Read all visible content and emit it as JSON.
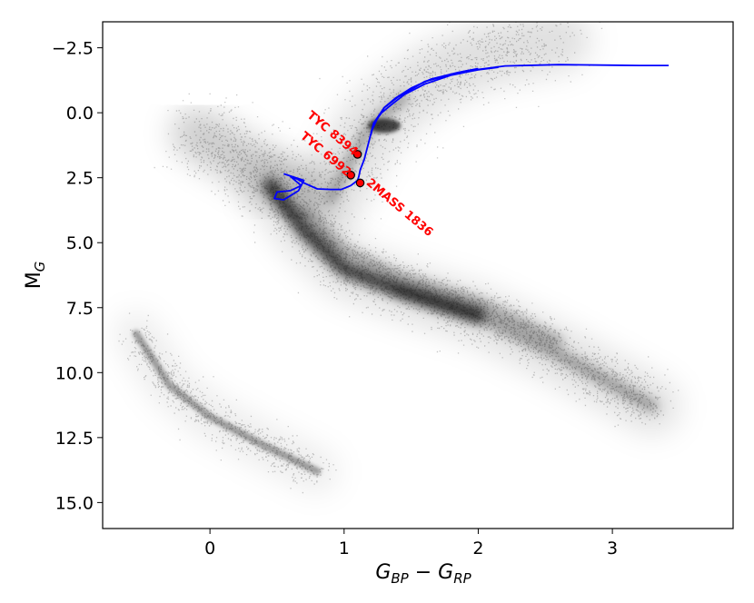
{
  "chart_data": {
    "type": "scatter",
    "title": "",
    "xlabel": {
      "main": "G",
      "sub1": "BP",
      "minus": " − ",
      "main2": "G",
      "sub2": "RP"
    },
    "ylabel": {
      "main": "M",
      "sub": "G"
    },
    "xlim": [
      -0.8,
      3.9
    ],
    "ylim": [
      16.0,
      -3.5
    ],
    "y_inverted": true,
    "grid": false,
    "x_ticks": [
      {
        "value": 0,
        "label": "0"
      },
      {
        "value": 1,
        "label": "1"
      },
      {
        "value": 2,
        "label": "2"
      },
      {
        "value": 3,
        "label": "3"
      }
    ],
    "y_ticks": [
      {
        "value": -2.5,
        "label": "−2.5"
      },
      {
        "value": 0.0,
        "label": "0.0"
      },
      {
        "value": 2.5,
        "label": "2.5"
      },
      {
        "value": 5.0,
        "label": "5.0"
      },
      {
        "value": 7.5,
        "label": "7.5"
      },
      {
        "value": 10.0,
        "label": "10.0"
      },
      {
        "value": 12.5,
        "label": "12.5"
      },
      {
        "value": 15.0,
        "label": "15.0"
      }
    ],
    "background_population": {
      "color": "#000000",
      "note_components": [
        "main-sequence",
        "red-giant-branch",
        "red-clump",
        "white-dwarf-sequence"
      ],
      "main_sequence": [
        [
          0.45,
          2.8
        ],
        [
          0.7,
          4.5
        ],
        [
          1.0,
          6.0
        ],
        [
          1.4,
          6.8
        ],
        [
          2.0,
          7.8
        ],
        [
          2.6,
          9.3
        ],
        [
          3.3,
          11.3
        ]
      ],
      "binary_sequence": [
        [
          0.7,
          3.8
        ],
        [
          1.0,
          5.3
        ],
        [
          1.4,
          6.3
        ],
        [
          2.0,
          7.3
        ],
        [
          2.6,
          8.8
        ]
      ],
      "giant_branch": [
        [
          0.9,
          3.3
        ],
        [
          1.05,
          1.8
        ],
        [
          1.2,
          0.5
        ],
        [
          1.45,
          -0.6
        ],
        [
          1.7,
          -1.5
        ],
        [
          2.1,
          -2.3
        ],
        [
          2.6,
          -2.8
        ]
      ],
      "red_clump": [
        1.3,
        0.5
      ],
      "turnoff_region": [
        [
          -0.1,
          0.8
        ],
        [
          0.2,
          1.7
        ],
        [
          0.45,
          2.5
        ],
        [
          0.7,
          3.0
        ]
      ],
      "white_dwarfs": [
        [
          -0.55,
          8.5
        ],
        [
          -0.3,
          10.5
        ],
        [
          0.0,
          11.7
        ],
        [
          0.4,
          12.8
        ],
        [
          0.8,
          13.8
        ]
      ]
    },
    "series": [
      {
        "color": "#0000ff",
        "type": "line",
        "x": [
          3.42,
          3.2,
          3.0,
          2.6,
          2.2,
          1.9,
          1.6,
          1.4,
          1.3,
          1.22,
          1.18,
          1.15,
          1.12,
          1.11,
          1.1,
          1.05,
          0.98,
          0.9,
          0.8,
          0.7,
          0.65,
          0.6,
          0.68,
          0.6,
          0.5,
          0.48,
          0.55,
          0.66,
          0.7,
          0.55
        ],
        "y": [
          -1.82,
          -1.82,
          -1.83,
          -1.85,
          -1.8,
          -1.6,
          -1.2,
          -0.6,
          -0.2,
          0.4,
          1.2,
          1.8,
          2.2,
          2.45,
          2.6,
          2.8,
          2.95,
          2.95,
          2.93,
          2.7,
          2.55,
          2.45,
          2.8,
          3.0,
          3.05,
          3.3,
          3.35,
          3.0,
          2.6,
          2.35
        ]
      },
      {
        "color": "#0000ff",
        "type": "line",
        "x": [
          2.15,
          2.0,
          1.8,
          1.6,
          1.45,
          1.35,
          1.28,
          1.22,
          1.2
        ],
        "y": [
          -1.75,
          -1.65,
          -1.45,
          -1.1,
          -0.7,
          -0.3,
          0.0,
          0.4,
          0.85
        ]
      },
      {
        "color": "#0000ff",
        "type": "line",
        "x": [
          2.0,
          1.85,
          1.65,
          1.5,
          1.38,
          1.3,
          1.25,
          1.2
        ],
        "y": [
          -1.7,
          -1.55,
          -1.3,
          -0.95,
          -0.55,
          -0.2,
          0.2,
          0.75
        ]
      }
    ],
    "highlighted_stars": [
      {
        "label": "TYC 8394",
        "x": 1.1,
        "y": 1.6,
        "color": "#ff0000",
        "edge": "#000000",
        "label_rotation": 40
      },
      {
        "label": "TYC 6992",
        "x": 1.05,
        "y": 2.4,
        "color": "#ff0000",
        "edge": "#000000",
        "label_rotation": 40
      },
      {
        "label": "2MASS 1836",
        "x": 1.12,
        "y": 2.7,
        "color": "#ff0000",
        "edge": "#000000",
        "label_rotation": 40
      }
    ]
  }
}
